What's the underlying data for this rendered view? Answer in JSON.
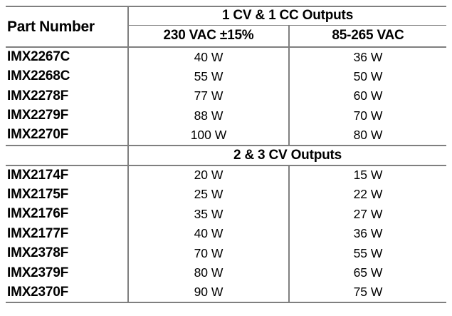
{
  "style": {
    "line_color": "#7f7f7f",
    "text_color": "#000000",
    "background": "#ffffff"
  },
  "table": {
    "part_number_header": "Part Number",
    "section1": {
      "title": "1 CV & 1 CC Outputs",
      "sub_col1": "230 VAC ±15%",
      "sub_col2": "85-265 VAC",
      "rows": [
        {
          "part": "IMX2267C",
          "w230": "40 W",
          "w85": "36 W"
        },
        {
          "part": "IMX2268C",
          "w230": "55 W",
          "w85": "50 W"
        },
        {
          "part": "IMX2278F",
          "w230": "77 W",
          "w85": "60 W"
        },
        {
          "part": "IMX2279F",
          "w230": "88 W",
          "w85": "70 W"
        },
        {
          "part": "IMX2270F",
          "w230": "100 W",
          "w85": "80 W"
        }
      ]
    },
    "section2": {
      "title": "2 & 3 CV Outputs",
      "rows": [
        {
          "part": "IMX2174F",
          "w230": "20 W",
          "w85": "15 W"
        },
        {
          "part": "IMX2175F",
          "w230": "25 W",
          "w85": "22 W"
        },
        {
          "part": "IMX2176F",
          "w230": "35 W",
          "w85": "27 W"
        },
        {
          "part": "IMX2177F",
          "w230": "40 W",
          "w85": "36 W"
        },
        {
          "part": "IMX2378F",
          "w230": "70 W",
          "w85": "55 W"
        },
        {
          "part": "IMX2379F",
          "w230": "80 W",
          "w85": "65 W"
        },
        {
          "part": "IMX2370F",
          "w230": "90 W",
          "w85": "75 W"
        }
      ]
    }
  }
}
